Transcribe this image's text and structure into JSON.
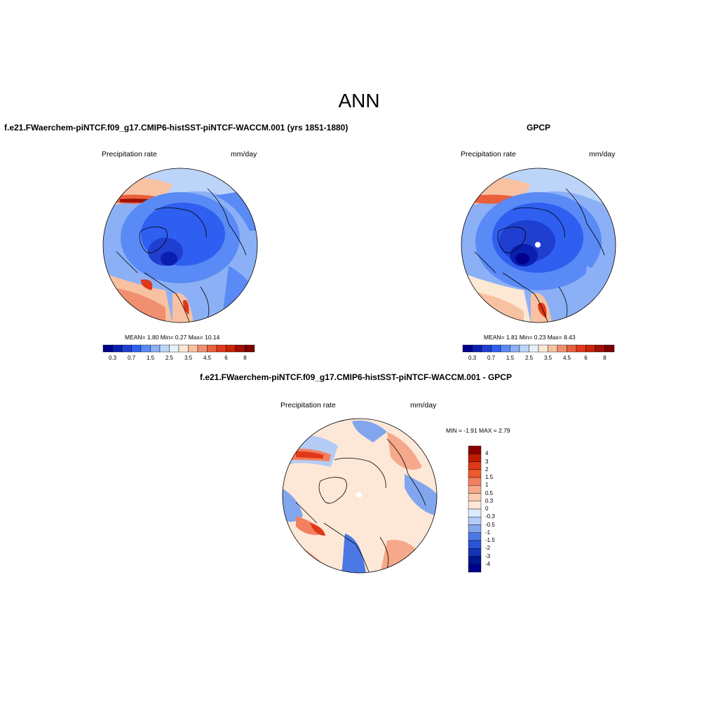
{
  "title": "ANN",
  "panels": [
    {
      "id": "model",
      "title": "f.e21.FWaerchem-piNTCF.f09_g17.CMIP6-histSST-piNTCF-WACCM.001 (yrs 1851-1880)",
      "variable": "Precipitation rate",
      "units": "mm/day",
      "stats_text": "MEAN=   1.80  Min=   0.27  Max=  10.14",
      "stats": {
        "mean": 1.8,
        "min": 0.27,
        "max": 10.14
      }
    },
    {
      "id": "obs",
      "title": "GPCP",
      "variable": "Precipitation rate",
      "units": "mm/day",
      "stats_text": "MEAN=   1.81  Min=   0.23  Max=   8.43",
      "stats": {
        "mean": 1.81,
        "min": 0.23,
        "max": 8.43
      }
    },
    {
      "id": "diff",
      "title": "f.e21.FWaerchem-piNTCF.f09_g17.CMIP6-histSST-piNTCF-WACCM.001 - GPCP",
      "variable": "Precipitation rate",
      "units": "mm/day",
      "stats_text": "MIN =  -1.91  MAX =   2.79",
      "stats": {
        "min": -1.91,
        "max": 2.79
      }
    }
  ],
  "colorbar_main": {
    "labels": [
      "0.3",
      "0.7",
      "1.5",
      "2.5",
      "3.5",
      "4.5",
      "6",
      "8"
    ],
    "colors": [
      "#00008b",
      "#0a1fb0",
      "#1f3fd0",
      "#2e5ff0",
      "#5a8af5",
      "#8cb0f5",
      "#bcd4f8",
      "#e6f0fb",
      "#fde8d4",
      "#f8c2a2",
      "#f09070",
      "#e8603c",
      "#e03818",
      "#c82408",
      "#a01004",
      "#7a0000"
    ]
  },
  "colorbar_diff": {
    "labels": [
      "4",
      "3",
      "2",
      "1.5",
      "1",
      "0.5",
      "0.3",
      "0",
      "-0.3",
      "-0.5",
      "-1",
      "-1.5",
      "-2",
      "-3",
      "-4"
    ],
    "colors": [
      "#8b0000",
      "#c01a00",
      "#e03818",
      "#ef5a2a",
      "#f28060",
      "#f6a98a",
      "#fbcdb4",
      "#fde8d8",
      "#dce8fb",
      "#b4ccf5",
      "#82a6ee",
      "#4c78e6",
      "#2a55d8",
      "#1434b8",
      "#00178f",
      "#00008b"
    ]
  }
}
